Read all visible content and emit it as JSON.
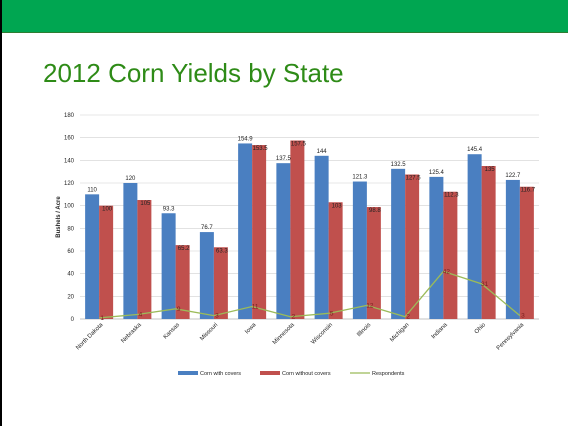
{
  "title": "2012 Corn Yields by State",
  "colors": {
    "header_bar": "#00a651",
    "title": "#2e8b17",
    "with_covers": "#4a7fc1",
    "without_covers": "#c0504d",
    "respondents": "#9bbb59"
  },
  "chart_data": {
    "type": "bar",
    "title": "",
    "xlabel": "",
    "ylabel": "Bushels / Acre",
    "ylim": [
      0,
      180
    ],
    "yticks": [
      0,
      20,
      40,
      60,
      80,
      100,
      120,
      140,
      160,
      180
    ],
    "grid": true,
    "legend_position": "bottom",
    "categories": [
      "North Dakota",
      "Nebraska",
      "Kansas",
      "Missouri",
      "Iowa",
      "Minnesota",
      "Wisconsin",
      "Illinois",
      "Michigan",
      "Indiana",
      "Ohio",
      "Pennsylvania"
    ],
    "series": [
      {
        "name": "Corn with covers",
        "type": "bar",
        "values": [
          110,
          120,
          93.3,
          76.7,
          154.9,
          137.5,
          144,
          121.3,
          132.5,
          125.4,
          145.4,
          122.7
        ]
      },
      {
        "name": "Corn without covers",
        "type": "bar",
        "values": [
          100,
          105,
          65.2,
          63.3,
          153.5,
          157.5,
          103,
          98.8,
          127.5,
          112.3,
          135,
          116.7
        ]
      },
      {
        "name": "Respondents",
        "type": "line",
        "values": [
          1,
          4,
          9,
          3,
          11,
          2,
          5,
          12,
          2,
          42,
          31,
          3
        ]
      }
    ]
  }
}
